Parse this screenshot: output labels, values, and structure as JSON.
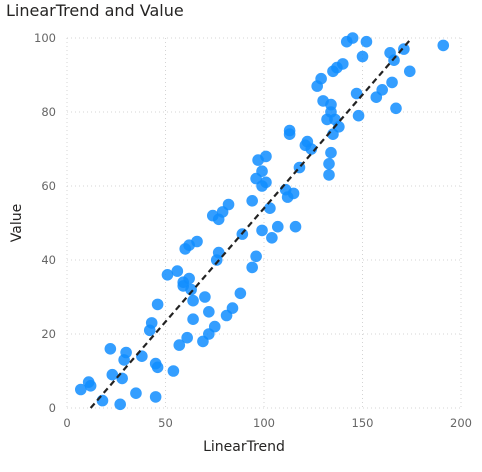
{
  "chart_data": {
    "type": "scatter",
    "title": "LinearTrend and Value",
    "xlabel": "LinearTrend",
    "ylabel": "Value",
    "xlim": [
      0,
      200
    ],
    "ylim": [
      0,
      100
    ],
    "xticks": [
      "0",
      "50",
      "100",
      "150",
      "200"
    ],
    "yticks": [
      "0",
      "20",
      "40",
      "60",
      "80",
      "100"
    ],
    "grid": true,
    "point_color": "#118DFF",
    "trend_color": "#222222",
    "trendline": {
      "x": [
        12,
        175
      ],
      "y": [
        0,
        100
      ]
    },
    "series": [
      {
        "x": [
          7,
          11,
          12,
          18,
          22,
          23,
          27,
          28,
          29,
          30,
          35,
          38,
          42,
          43,
          45,
          45,
          46,
          46,
          51,
          54,
          56,
          57,
          59,
          59,
          60,
          61,
          62,
          62,
          63,
          64,
          64,
          66,
          69,
          70,
          72,
          72,
          74,
          75,
          76,
          77,
          77,
          79,
          81,
          82,
          84,
          88,
          89,
          94,
          94,
          96,
          96,
          97,
          99,
          99,
          99,
          101,
          101,
          103,
          104,
          107,
          111,
          112,
          113,
          113,
          115,
          116,
          118,
          121,
          122,
          124,
          127,
          129,
          130,
          132,
          133,
          133,
          134,
          134,
          134,
          135,
          135,
          136,
          137,
          138,
          140,
          142,
          145,
          147,
          148,
          150,
          152,
          157,
          160,
          164,
          165,
          166,
          167,
          171,
          174,
          191
        ],
        "y": [
          5,
          7,
          6,
          2,
          16,
          9,
          1,
          8,
          13,
          15,
          4,
          14,
          21,
          23,
          12,
          3,
          11,
          28,
          36,
          10,
          37,
          17,
          33,
          34,
          43,
          19,
          35,
          44,
          32,
          29,
          24,
          45,
          18,
          30,
          26,
          20,
          52,
          22,
          40,
          42,
          51,
          53,
          25,
          55,
          27,
          31,
          47,
          38,
          56,
          41,
          62,
          67,
          60,
          64,
          48,
          61,
          68,
          54,
          46,
          49,
          59,
          57,
          75,
          74,
          58,
          49,
          65,
          71,
          72,
          70,
          87,
          89,
          83,
          78,
          63,
          66,
          69,
          80,
          82,
          91,
          74,
          78,
          92,
          76,
          93,
          99,
          100,
          85,
          79,
          95,
          99,
          84,
          86,
          96,
          88,
          94,
          81,
          97,
          91,
          98
        ]
      }
    ]
  }
}
